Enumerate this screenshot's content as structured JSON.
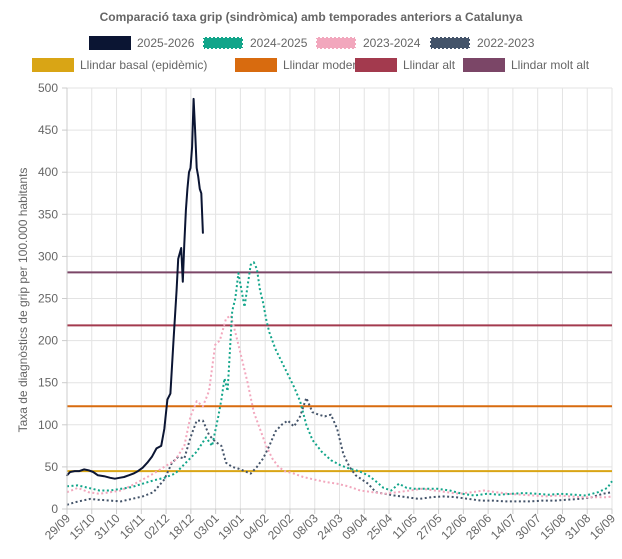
{
  "chart_data": {
    "type": "line",
    "title": "Comparació taxa grip (sindròmica) amb temporades anteriors a Catalunya",
    "xlabel": "",
    "ylabel": "Taxa de diagnòstics de grip per 100.000 habitants",
    "ylim": [
      0,
      500
    ],
    "yticks": [
      0,
      50,
      100,
      150,
      200,
      250,
      300,
      350,
      400,
      450,
      500
    ],
    "x_ticks": [
      "29/09",
      "15/10",
      "31/10",
      "16/11",
      "02/12",
      "18/12",
      "03/01",
      "19/01",
      "04/02",
      "20/02",
      "08/03",
      "24/03",
      "09/04",
      "25/04",
      "11/05",
      "27/05",
      "12/06",
      "28/06",
      "14/07",
      "30/07",
      "15/08",
      "31/08",
      "16/09"
    ],
    "x_day_range": [
      0,
      353
    ],
    "grid": true,
    "legend_position": "top",
    "series": [
      {
        "name": "2025-2026",
        "color": "#0b1533",
        "style": "solid",
        "points": [
          [
            0,
            40
          ],
          [
            2,
            44
          ],
          [
            5,
            45
          ],
          [
            8,
            45
          ],
          [
            11,
            47
          ],
          [
            14,
            46
          ],
          [
            17,
            44
          ],
          [
            20,
            40
          ],
          [
            24,
            39
          ],
          [
            28,
            37
          ],
          [
            31,
            36
          ],
          [
            34,
            37
          ],
          [
            37,
            38
          ],
          [
            40,
            40
          ],
          [
            43,
            42
          ],
          [
            46,
            45
          ],
          [
            49,
            49
          ],
          [
            52,
            55
          ],
          [
            55,
            62
          ],
          [
            58,
            72
          ],
          [
            61,
            75
          ],
          [
            63,
            95
          ],
          [
            65,
            130
          ],
          [
            67,
            137
          ],
          [
            69,
            200
          ],
          [
            71,
            260
          ],
          [
            72,
            297
          ],
          [
            74,
            310
          ],
          [
            75,
            270
          ],
          [
            76,
            315
          ],
          [
            77,
            355
          ],
          [
            78,
            380
          ],
          [
            79,
            400
          ],
          [
            80,
            405
          ],
          [
            81,
            430
          ],
          [
            82,
            487
          ],
          [
            83,
            450
          ],
          [
            84,
            405
          ],
          [
            85,
            395
          ],
          [
            86,
            380
          ],
          [
            87,
            375
          ],
          [
            88,
            328
          ]
        ]
      },
      {
        "name": "2024-2025",
        "color": "#12a58a",
        "style": "dotted",
        "points": [
          [
            0,
            27
          ],
          [
            7,
            28
          ],
          [
            14,
            25
          ],
          [
            21,
            22
          ],
          [
            28,
            22
          ],
          [
            35,
            24
          ],
          [
            42,
            26
          ],
          [
            49,
            30
          ],
          [
            56,
            34
          ],
          [
            63,
            37
          ],
          [
            70,
            42
          ],
          [
            77,
            55
          ],
          [
            84,
            68
          ],
          [
            90,
            85
          ],
          [
            94,
            75
          ],
          [
            98,
            110
          ],
          [
            100,
            130
          ],
          [
            102,
            155
          ],
          [
            104,
            140
          ],
          [
            107,
            235
          ],
          [
            109,
            250
          ],
          [
            111,
            280
          ],
          [
            113,
            260
          ],
          [
            115,
            240
          ],
          [
            117,
            265
          ],
          [
            119,
            290
          ],
          [
            121,
            293
          ],
          [
            123,
            285
          ],
          [
            125,
            260
          ],
          [
            127,
            245
          ],
          [
            129,
            225
          ],
          [
            131,
            210
          ],
          [
            135,
            190
          ],
          [
            139,
            175
          ],
          [
            143,
            160
          ],
          [
            147,
            145
          ],
          [
            151,
            128
          ],
          [
            155,
            100
          ],
          [
            159,
            82
          ],
          [
            165,
            68
          ],
          [
            171,
            58
          ],
          [
            177,
            52
          ],
          [
            183,
            48
          ],
          [
            189,
            45
          ],
          [
            195,
            40
          ],
          [
            200,
            33
          ],
          [
            205,
            25
          ],
          [
            210,
            22
          ],
          [
            215,
            30
          ],
          [
            220,
            25
          ],
          [
            225,
            24
          ],
          [
            232,
            24
          ],
          [
            240,
            24
          ],
          [
            248,
            22
          ],
          [
            256,
            18
          ],
          [
            264,
            16
          ],
          [
            272,
            18
          ],
          [
            280,
            17
          ],
          [
            288,
            18
          ],
          [
            296,
            19
          ],
          [
            304,
            18
          ],
          [
            312,
            17
          ],
          [
            320,
            18
          ],
          [
            328,
            17
          ],
          [
            336,
            16
          ],
          [
            344,
            20
          ],
          [
            350,
            25
          ],
          [
            353,
            33
          ]
        ]
      },
      {
        "name": "2023-2024",
        "color": "#f2a7bd",
        "style": "dotted",
        "points": [
          [
            0,
            20
          ],
          [
            7,
            25
          ],
          [
            14,
            20
          ],
          [
            21,
            18
          ],
          [
            28,
            20
          ],
          [
            35,
            22
          ],
          [
            42,
            28
          ],
          [
            49,
            35
          ],
          [
            56,
            42
          ],
          [
            63,
            50
          ],
          [
            70,
            58
          ],
          [
            76,
            75
          ],
          [
            80,
            110
          ],
          [
            84,
            128
          ],
          [
            88,
            122
          ],
          [
            92,
            140
          ],
          [
            96,
            195
          ],
          [
            99,
            200
          ],
          [
            103,
            226
          ],
          [
            106,
            230
          ],
          [
            109,
            210
          ],
          [
            113,
            180
          ],
          [
            117,
            150
          ],
          [
            121,
            115
          ],
          [
            125,
            95
          ],
          [
            129,
            75
          ],
          [
            133,
            60
          ],
          [
            137,
            50
          ],
          [
            141,
            45
          ],
          [
            147,
            42
          ],
          [
            153,
            38
          ],
          [
            160,
            35
          ],
          [
            168,
            32
          ],
          [
            175,
            30
          ],
          [
            182,
            27
          ],
          [
            190,
            22
          ],
          [
            198,
            20
          ],
          [
            206,
            18
          ],
          [
            214,
            20
          ],
          [
            222,
            22
          ],
          [
            230,
            24
          ],
          [
            238,
            22
          ],
          [
            246,
            20
          ],
          [
            254,
            18
          ],
          [
            262,
            20
          ],
          [
            270,
            22
          ],
          [
            278,
            20
          ],
          [
            286,
            18
          ],
          [
            294,
            17
          ],
          [
            302,
            16
          ],
          [
            310,
            15
          ],
          [
            318,
            16
          ],
          [
            326,
            15
          ],
          [
            334,
            14
          ],
          [
            342,
            14
          ],
          [
            350,
            14
          ],
          [
            353,
            15
          ]
        ]
      },
      {
        "name": "2022-2023",
        "color": "#44546a",
        "style": "dotted",
        "points": [
          [
            0,
            5
          ],
          [
            5,
            8
          ],
          [
            10,
            10
          ],
          [
            15,
            12
          ],
          [
            20,
            11
          ],
          [
            28,
            10
          ],
          [
            35,
            9
          ],
          [
            42,
            12
          ],
          [
            49,
            15
          ],
          [
            56,
            20
          ],
          [
            63,
            35
          ],
          [
            68,
            55
          ],
          [
            72,
            62
          ],
          [
            76,
            60
          ],
          [
            80,
            85
          ],
          [
            84,
            105
          ],
          [
            88,
            105
          ],
          [
            92,
            88
          ],
          [
            96,
            80
          ],
          [
            100,
            75
          ],
          [
            103,
            55
          ],
          [
            107,
            50
          ],
          [
            111,
            48
          ],
          [
            115,
            45
          ],
          [
            119,
            42
          ],
          [
            123,
            50
          ],
          [
            127,
            60
          ],
          [
            131,
            75
          ],
          [
            135,
            92
          ],
          [
            139,
            100
          ],
          [
            143,
            105
          ],
          [
            147,
            98
          ],
          [
            151,
            110
          ],
          [
            155,
            132
          ],
          [
            159,
            115
          ],
          [
            163,
            112
          ],
          [
            167,
            110
          ],
          [
            171,
            112
          ],
          [
            175,
            95
          ],
          [
            179,
            65
          ],
          [
            183,
            50
          ],
          [
            187,
            40
          ],
          [
            191,
            35
          ],
          [
            195,
            30
          ],
          [
            200,
            20
          ],
          [
            206,
            18
          ],
          [
            212,
            16
          ],
          [
            220,
            14
          ],
          [
            228,
            12
          ],
          [
            236,
            14
          ],
          [
            244,
            15
          ],
          [
            252,
            14
          ],
          [
            260,
            12
          ],
          [
            268,
            10
          ],
          [
            276,
            10
          ],
          [
            284,
            9
          ],
          [
            292,
            9
          ],
          [
            300,
            9
          ],
          [
            308,
            10
          ],
          [
            316,
            10
          ],
          [
            324,
            11
          ],
          [
            332,
            12
          ],
          [
            340,
            14
          ],
          [
            347,
            18
          ],
          [
            353,
            20
          ]
        ]
      },
      {
        "name": "Llindar basal (epidèmic)",
        "color": "#d9a515",
        "style": "solid",
        "points": [
          [
            0,
            45
          ],
          [
            353,
            45
          ]
        ]
      },
      {
        "name": "Llindar moderat",
        "color": "#d86b0f",
        "style": "solid",
        "points": [
          [
            0,
            122
          ],
          [
            353,
            122
          ]
        ]
      },
      {
        "name": "Llindar alt",
        "color": "#a33a4e",
        "style": "solid",
        "points": [
          [
            0,
            218
          ],
          [
            353,
            218
          ]
        ]
      },
      {
        "name": "Llindar molt alt",
        "color": "#7b4667",
        "style": "solid",
        "points": [
          [
            0,
            281
          ],
          [
            353,
            281
          ]
        ]
      }
    ]
  }
}
